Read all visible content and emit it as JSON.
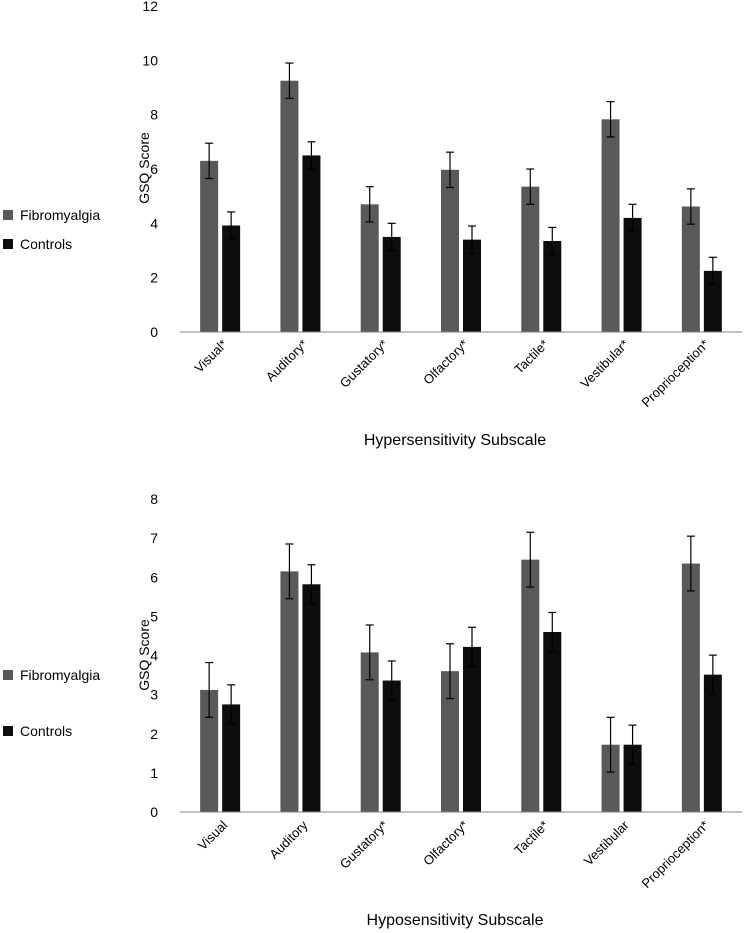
{
  "colors": {
    "fibromyalgia": "#595959",
    "controls": "#0d0d0d",
    "axis": "#808080",
    "error": "#000000"
  },
  "chart_data": [
    {
      "type": "bar",
      "title": "",
      "xlabel": "Hypersensitivity Subscale",
      "ylabel": "GSQ Score",
      "ylim": [
        0,
        12
      ],
      "yticks": [
        0,
        2,
        4,
        6,
        8,
        10,
        12
      ],
      "legend_position": "left",
      "categories": [
        "Visual*",
        "Auditory*",
        "Gustatory*",
        "Olfactory*",
        "Tactile*",
        "Vestibular*",
        "Proprioception*"
      ],
      "series": [
        {
          "name": "Fibromyalgia",
          "values": [
            6.3,
            9.25,
            4.7,
            5.97,
            5.35,
            7.83,
            4.62
          ],
          "errors": [
            0.65,
            0.65,
            0.65,
            0.65,
            0.65,
            0.65,
            0.65
          ]
        },
        {
          "name": "Controls",
          "values": [
            3.92,
            6.5,
            3.5,
            3.4,
            3.35,
            4.2,
            2.25
          ],
          "errors": [
            0.5,
            0.5,
            0.5,
            0.5,
            0.5,
            0.5,
            0.5
          ]
        }
      ]
    },
    {
      "type": "bar",
      "title": "",
      "xlabel": "Hyposensitivity Subscale",
      "ylabel": "GSQ Score",
      "ylim": [
        0,
        8
      ],
      "yticks": [
        0,
        1,
        2,
        3,
        4,
        5,
        6,
        7,
        8
      ],
      "legend_position": "left",
      "categories": [
        "Visual",
        "Auditory",
        "Gustatory*",
        "Olfactory*",
        "Tactile*",
        "Vestibular",
        "Proprioception*"
      ],
      "series": [
        {
          "name": "Fibromyalgia",
          "values": [
            3.12,
            6.15,
            4.08,
            3.6,
            6.45,
            1.72,
            6.35
          ],
          "errors": [
            0.7,
            0.7,
            0.7,
            0.7,
            0.7,
            0.7,
            0.7
          ]
        },
        {
          "name": "Controls",
          "values": [
            2.75,
            5.82,
            3.36,
            4.22,
            4.6,
            1.72,
            3.51
          ],
          "errors": [
            0.5,
            0.5,
            0.5,
            0.5,
            0.5,
            0.5,
            0.5
          ]
        }
      ]
    }
  ]
}
